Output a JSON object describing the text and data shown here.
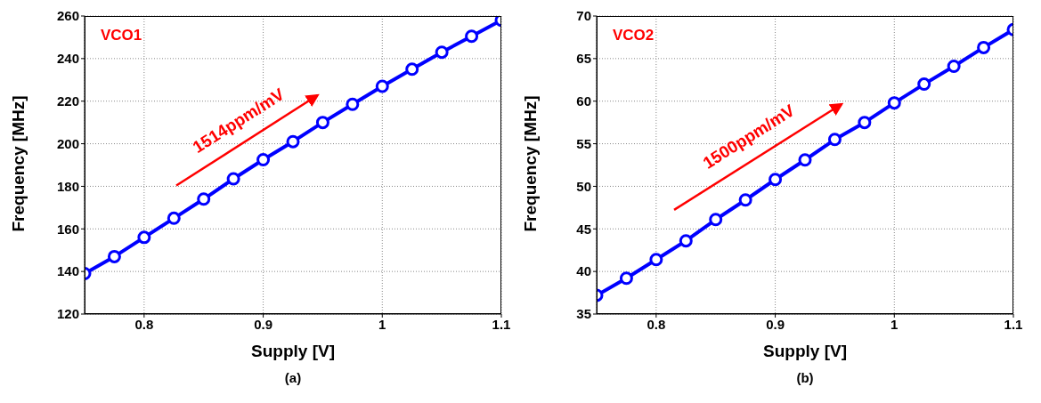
{
  "chart_data": [
    {
      "type": "line",
      "xlabel": "Supply [V]",
      "ylabel": "Frequency [MHz]",
      "annotations": [
        "VCO1",
        "1514ppm/mV",
        "(a)"
      ],
      "x": [
        0.75,
        0.775,
        0.8,
        0.825,
        0.85,
        0.875,
        0.9,
        0.925,
        0.95,
        0.975,
        1.0,
        1.025,
        1.05,
        1.075,
        1.1
      ],
      "series": [
        {
          "color": "#0000ff",
          "values": [
            139,
            147,
            156,
            165,
            174,
            183.5,
            192.5,
            201,
            210,
            218.5,
            227,
            235,
            243,
            250.5,
            258
          ]
        }
      ],
      "xlim": [
        0.75,
        1.1
      ],
      "xticks": [
        0.8,
        0.9,
        1,
        1.1
      ],
      "ylim": [
        120,
        260
      ],
      "yticks": [
        120,
        140,
        160,
        180,
        200,
        220,
        240,
        260
      ],
      "grid": true,
      "marker": "circle",
      "line_style": "solid"
    },
    {
      "type": "line",
      "xlabel": "Supply [V]",
      "ylabel": "Frequency [MHz]",
      "annotations": [
        "VCO2",
        "1500ppm/mV",
        "(b)"
      ],
      "x": [
        0.75,
        0.775,
        0.8,
        0.825,
        0.85,
        0.875,
        0.9,
        0.925,
        0.95,
        0.975,
        1.0,
        1.025,
        1.05,
        1.075,
        1.1
      ],
      "series": [
        {
          "color": "#0000ff",
          "values": [
            37.2,
            39.2,
            41.4,
            43.6,
            46.1,
            48.4,
            50.8,
            53.1,
            55.5,
            57.5,
            59.8,
            62.0,
            64.1,
            66.3,
            68.4
          ]
        }
      ],
      "xlim": [
        0.75,
        1.1
      ],
      "xticks": [
        0.8,
        0.9,
        1,
        1.1
      ],
      "ylim": [
        35,
        70
      ],
      "yticks": [
        35,
        40,
        45,
        50,
        55,
        60,
        65,
        70
      ],
      "grid": true,
      "marker": "circle",
      "line_style": "solid"
    }
  ]
}
